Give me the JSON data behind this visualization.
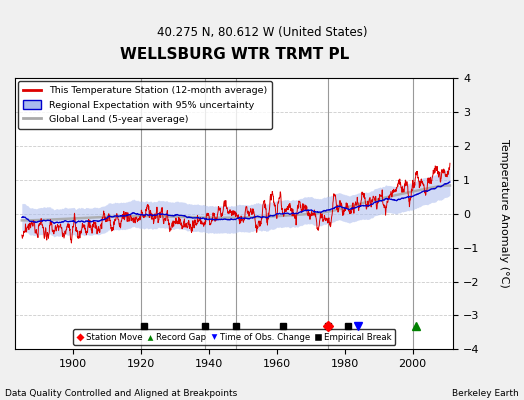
{
  "title": "WELLSBURG WTR TRMT PL",
  "subtitle": "40.275 N, 80.612 W (United States)",
  "ylabel": "Temperature Anomaly (°C)",
  "xlabel_note": "Data Quality Controlled and Aligned at Breakpoints",
  "credit": "Berkeley Earth",
  "xlim": [
    1883,
    2012
  ],
  "ylim": [
    -4,
    4
  ],
  "yticks": [
    -4,
    -3,
    -2,
    -1,
    0,
    1,
    2,
    3,
    4
  ],
  "xticks": [
    1900,
    1920,
    1940,
    1960,
    1980,
    2000
  ],
  "background_color": "#f0f0f0",
  "plot_bg_color": "#ffffff",
  "grid_color": "#cccccc",
  "vertical_lines": [
    1920,
    1939,
    1948,
    1975,
    2000
  ],
  "empirical_breaks": [
    1921,
    1939,
    1948,
    1962,
    1975,
    1981
  ],
  "station_moves": [
    1975
  ],
  "record_gaps": [
    2001
  ],
  "obs_changes": [
    1984
  ],
  "red_line_color": "#dd0000",
  "blue_line_color": "#0000cc",
  "blue_fill_color": "#aabbee",
  "gray_line_color": "#aaaaaa",
  "seed": 12345,
  "years_start": 1885,
  "years_end": 2011
}
